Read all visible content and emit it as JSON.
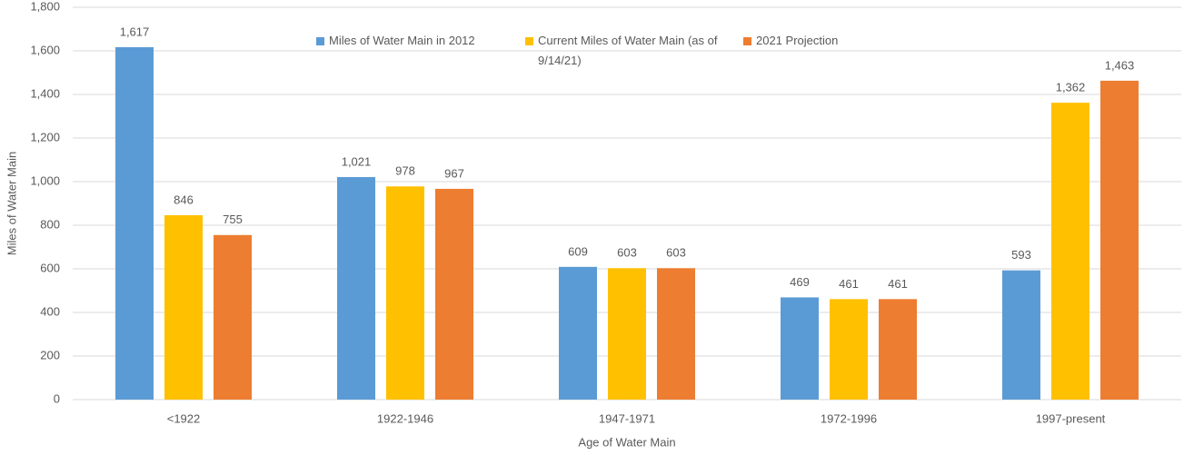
{
  "chart_data": {
    "type": "bar",
    "categories": [
      "<1922",
      "1922-1946",
      "1947-1971",
      "1972-1996",
      "1997-present"
    ],
    "series": [
      {
        "name": "Miles of Water Main in 2012",
        "color": "#5b9bd5",
        "values": [
          1617,
          1021,
          609,
          469,
          593
        ],
        "value_labels": [
          "1,617",
          "1,021",
          "609",
          "469",
          "593"
        ]
      },
      {
        "name": "Current Miles of Water Main (as of 9/14/21)",
        "color": "#ffc000",
        "values": [
          846,
          978,
          603,
          461,
          1362
        ],
        "value_labels": [
          "846",
          "978",
          "603",
          "461",
          "1,362"
        ]
      },
      {
        "name": "2021 Projection",
        "color": "#ed7d31",
        "values": [
          755,
          967,
          603,
          461,
          1463
        ],
        "value_labels": [
          "755",
          "967",
          "603",
          "461",
          "1,463"
        ]
      }
    ],
    "xlabel": "Age of Water Main",
    "ylabel": "Miles of Water Main",
    "ylim": [
      0,
      1800
    ],
    "yticks": [
      0,
      200,
      400,
      600,
      800,
      {
        "value": 1000,
        "label": "1,000"
      },
      {
        "value": 1200,
        "label": "1,200"
      },
      {
        "value": 1400,
        "label": "1,400"
      },
      {
        "value": 1600,
        "label": "1,600"
      },
      {
        "value": 1800,
        "label": "1,800"
      }
    ],
    "grid": true,
    "legend": "top"
  }
}
